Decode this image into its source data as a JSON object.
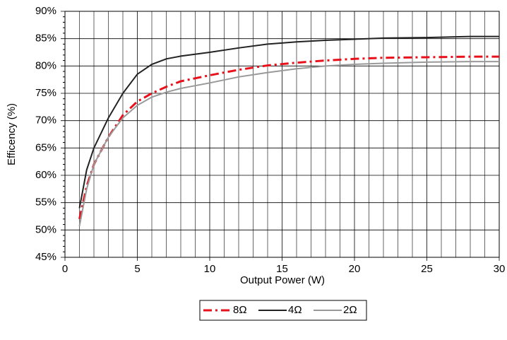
{
  "chart_data": {
    "type": "line",
    "x_label": "Output Power (W)",
    "y_label": "Efficency (%)",
    "x": [
      1,
      1.5,
      2,
      3,
      4,
      5,
      6,
      7,
      8,
      10,
      12,
      14,
      16,
      18,
      20,
      22,
      25,
      28,
      30
    ],
    "series": [
      {
        "name": "8Ω",
        "color": "#e8101a",
        "dash": "dash-dot",
        "values": [
          52,
          58,
          62,
          67,
          71,
          73.5,
          75,
          76.2,
          77.2,
          78.3,
          79.3,
          80.1,
          80.6,
          81,
          81.3,
          81.5,
          81.6,
          81.7,
          81.7
        ]
      },
      {
        "name": "4Ω",
        "color": "#222222",
        "dash": "solid",
        "values": [
          54,
          61,
          65,
          70.5,
          75,
          78.5,
          80.3,
          81.3,
          81.8,
          82.5,
          83.3,
          84,
          84.4,
          84.7,
          84.9,
          85.1,
          85.2,
          85.4,
          85.4
        ]
      },
      {
        "name": "2Ω",
        "color": "#999999",
        "dash": "solid",
        "values": [
          50.7,
          57.5,
          62,
          67,
          70.5,
          72.8,
          74.3,
          75.2,
          75.9,
          76.9,
          78,
          78.8,
          79.5,
          80,
          80.3,
          80.5,
          80.7,
          80.8,
          80.8
        ]
      }
    ],
    "xlim": [
      0,
      30
    ],
    "xticks": [
      0,
      5,
      10,
      15,
      20,
      25,
      30
    ],
    "ylim": [
      45,
      90
    ],
    "yticks": [
      {
        "value": 45,
        "label": "45%"
      },
      {
        "value": 50,
        "label": "50%"
      },
      {
        "value": 55,
        "label": "55%"
      },
      {
        "value": 60,
        "label": "60%"
      },
      {
        "value": 65,
        "label": "65%"
      },
      {
        "value": 70,
        "label": "70%"
      },
      {
        "value": 75,
        "label": "75%"
      },
      {
        "value": 80,
        "label": "80%"
      },
      {
        "value": 85,
        "label": "85%"
      },
      {
        "value": 90,
        "label": "90%"
      }
    ],
    "grid": true,
    "legend": "bottom"
  }
}
